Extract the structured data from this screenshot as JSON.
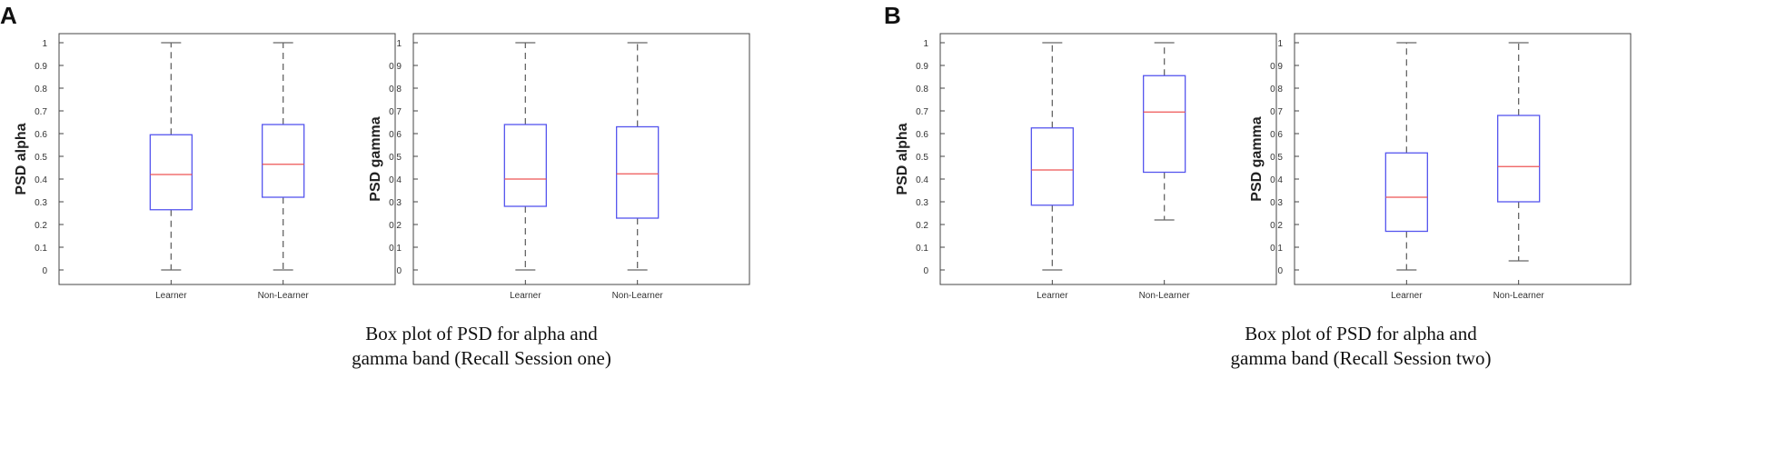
{
  "panels": [
    {
      "letter": "A",
      "caption_line1": "Box plot of PSD for  alpha  and",
      "caption_line2": "gamma band (Recall Session one)"
    },
    {
      "letter": "B",
      "caption_line1": "Box plot of PSD for  alpha  and",
      "caption_line2": "gamma band (Recall Session two)"
    }
  ],
  "colors": {
    "box": "#5555ee",
    "median": "#ee5555",
    "whisker": "#666666",
    "axis": "#444444"
  },
  "chart_data": [
    {
      "type": "boxplot",
      "ylabel": "PSD alpha",
      "ylim": [
        0,
        1
      ],
      "yticks": [
        "0",
        "0.1",
        "0.2",
        "0.3",
        "0.4",
        "0.5",
        "0.6",
        "0.7",
        "0.8",
        "0.9",
        "1"
      ],
      "categories": [
        "Learner",
        "Non-Learner"
      ],
      "boxes": [
        {
          "min": 0,
          "q1": 0.265,
          "median": 0.42,
          "q3": 0.595,
          "max": 1
        },
        {
          "min": 0,
          "q1": 0.32,
          "median": 0.465,
          "q3": 0.64,
          "max": 1
        }
      ]
    },
    {
      "type": "boxplot",
      "ylabel": "PSD gamma",
      "ylim": [
        0,
        1
      ],
      "yticks": [
        "0",
        "0.1",
        "0.2",
        "0.3",
        "0.4",
        "0.5",
        "0.6",
        "0.7",
        "0.8",
        "0.9",
        "1"
      ],
      "categories": [
        "Learner",
        "Non-Learner"
      ],
      "boxes": [
        {
          "min": 0,
          "q1": 0.28,
          "median": 0.4,
          "q3": 0.64,
          "max": 1
        },
        {
          "min": 0,
          "q1": 0.228,
          "median": 0.423,
          "q3": 0.63,
          "max": 1
        }
      ]
    },
    {
      "type": "boxplot",
      "ylabel": "PSD alpha",
      "ylim": [
        0,
        1
      ],
      "yticks": [
        "0",
        "0.1",
        "0.2",
        "0.3",
        "0.4",
        "0.5",
        "0.6",
        "0.7",
        "0.8",
        "0.9",
        "1"
      ],
      "categories": [
        "Learner",
        "Non-Learner"
      ],
      "boxes": [
        {
          "min": 0,
          "q1": 0.285,
          "median": 0.44,
          "q3": 0.625,
          "max": 1
        },
        {
          "min": 0.22,
          "q1": 0.43,
          "median": 0.695,
          "q3": 0.855,
          "max": 1
        }
      ]
    },
    {
      "type": "boxplot",
      "ylabel": "PSD gamma",
      "ylim": [
        0,
        1
      ],
      "yticks": [
        "0",
        "0.1",
        "0.2",
        "0.3",
        "0.4",
        "0.5",
        "0.6",
        "0.7",
        "0.8",
        "0.9",
        "1"
      ],
      "categories": [
        "Learner",
        "Non-Learner"
      ],
      "boxes": [
        {
          "min": 0,
          "q1": 0.17,
          "median": 0.32,
          "q3": 0.515,
          "max": 1
        },
        {
          "min": 0.04,
          "q1": 0.3,
          "median": 0.455,
          "q3": 0.68,
          "max": 1
        }
      ]
    }
  ]
}
